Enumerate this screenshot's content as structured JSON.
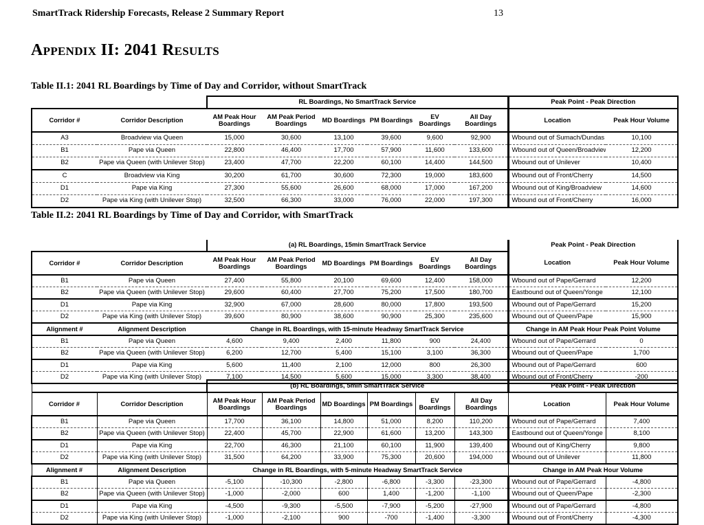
{
  "page": {
    "header_title": "SmartTrack Ridership Forecasts, Release 2 Summary Report",
    "page_number": "13",
    "appendix_title": "Appendix II: 2041 Results"
  },
  "shared": {
    "peak_point_header": "Peak Point - Peak Direction",
    "columns": [
      "Corridor #",
      "Corridor Description",
      "AM Peak Hour Boardings",
      "AM Peak Period Boardings",
      "MD Boardings",
      "PM Boardings",
      "EV Boardings",
      "All Day Boardings",
      "Location",
      "Peak Hour Volume"
    ]
  },
  "table1": {
    "caption": "Table II.1: 2041 RL Boardings by Time of Day and Corridor, without SmartTrack",
    "span_header": "RL Boardings, No SmartTrack Service",
    "rows": [
      [
        "A3",
        "Broadview via Queen",
        "15,000",
        "30,600",
        "13,100",
        "39,600",
        "9,600",
        "92,900",
        "Wbound out of Sumach/Dundas",
        "10,100"
      ],
      [
        "B1",
        "Pape via Queen",
        "22,800",
        "46,400",
        "17,700",
        "57,900",
        "11,600",
        "133,600",
        "Wbound out of Queen/Broadview",
        "12,200"
      ],
      [
        "B2",
        "Pape via Queen (with Unilever Stop)",
        "23,400",
        "47,700",
        "22,200",
        "60,100",
        "14,400",
        "144,500",
        "Wbound out of Unilever",
        "10,400"
      ],
      [
        "C",
        "Broadview via King",
        "30,200",
        "61,700",
        "30,600",
        "72,300",
        "19,000",
        "183,600",
        "Wbound out of Front/Cherry",
        "14,500"
      ],
      [
        "D1",
        "Pape via King",
        "27,300",
        "55,600",
        "26,600",
        "68,000",
        "17,000",
        "167,200",
        "Wbound out of King/Broadview",
        "14,600"
      ],
      [
        "D2",
        "Pape via King (with Unilever Stop)",
        "32,500",
        "66,300",
        "33,000",
        "76,000",
        "22,000",
        "197,300",
        "Wbound out of Front/Cherry",
        "16,000"
      ]
    ]
  },
  "table2": {
    "caption": "Table II.2: 2041 RL Boardings by Time of Day and Corridor, with SmartTrack"
  },
  "table2a": {
    "span_header": "(a) RL Boardings, 15min SmartTrack Service",
    "rows": [
      [
        "B1",
        "Pape via Queen",
        "27,400",
        "55,800",
        "20,100",
        "69,600",
        "12,400",
        "158,000",
        "Wbound out of Pape/Gerrard",
        "12,200"
      ],
      [
        "B2",
        "Pape via Queen (with Unilever Stop)",
        "29,600",
        "60,400",
        "27,700",
        "75,200",
        "17,500",
        "180,700",
        "Eastbound out of Queen/Yonge",
        "12,100"
      ],
      [
        "D1",
        "Pape via King",
        "32,900",
        "67,000",
        "28,600",
        "80,000",
        "17,800",
        "193,500",
        "Wbound out of Pape/Gerrard",
        "15,200"
      ],
      [
        "D2",
        "Pape via King (with Unilever Stop)",
        "39,600",
        "80,900",
        "38,600",
        "90,900",
        "25,300",
        "235,600",
        "Wbound out of Queen/Pape",
        "15,900"
      ]
    ],
    "change": {
      "id_header": "Alignment #",
      "desc_header": "Alignment Description",
      "span_header": "Change in RL Boardings, with 15-minute Headway SmartTrack Service",
      "volume_header": "Change in AM Peak Hour Peak Point Volume",
      "rows": [
        [
          "B1",
          "Pape via Queen",
          "4,600",
          "9,400",
          "2,400",
          "11,800",
          "900",
          "24,400",
          "Wbound out of Pape/Gerrard",
          "0"
        ],
        [
          "B2",
          "Pape via Queen (with Unilever Stop)",
          "6,200",
          "12,700",
          "5,400",
          "15,100",
          "3,100",
          "36,300",
          "Wbound out of Queen/Pape",
          "1,700"
        ],
        [
          "D1",
          "Pape via King",
          "5,600",
          "11,400",
          "2,100",
          "12,000",
          "800",
          "26,300",
          "Wbound out of Pape/Gerrard",
          "600"
        ],
        [
          "D2",
          "Pape via King (with Unilever Stop)",
          "7,100",
          "14,500",
          "5,600",
          "15,000",
          "3,300",
          "38,400",
          "Wbound out of Front/Cherry",
          "-200"
        ]
      ]
    }
  },
  "table2b": {
    "span_header": "(b) RL Boardings, 5min SmartTrack Service",
    "rows": [
      [
        "B1",
        "Pape via Queen",
        "17,700",
        "36,100",
        "14,800",
        "51,000",
        "8,200",
        "110,200",
        "Wbound out of Pape/Gerrard",
        "7,400"
      ],
      [
        "B2",
        "Pape via Queen (with Unilever Stop)",
        "22,400",
        "45,700",
        "22,900",
        "61,600",
        "13,200",
        "143,300",
        "Eastbound out of Queen/Yonge",
        "8,100"
      ],
      [
        "D1",
        "Pape via King",
        "22,700",
        "46,300",
        "21,100",
        "60,100",
        "11,900",
        "139,400",
        "Wbound out of King/Cherry",
        "9,800"
      ],
      [
        "D2",
        "Pape via King (with Unilever Stop)",
        "31,500",
        "64,200",
        "33,900",
        "75,300",
        "20,600",
        "194,000",
        "Wbound out of Unilever",
        "11,800"
      ]
    ],
    "change": {
      "id_header": "Alignment #",
      "desc_header": "Alignment Description",
      "span_header": "Change in RL Boardings, with 5-minute Headway SmartTrack Service",
      "volume_header": "Change in AM Peak Hour Volume",
      "rows": [
        [
          "B1",
          "Pape via Queen",
          "-5,100",
          "-10,300",
          "-2,800",
          "-6,800",
          "-3,300",
          "-23,300",
          "Wbound out of Pape/Gerrard",
          "-4,800"
        ],
        [
          "B2",
          "Pape via Queen (with Unilever Stop)",
          "-1,000",
          "-2,000",
          "600",
          "1,400",
          "-1,200",
          "-1,100",
          "Wbound out of Queen/Pape",
          "-2,300"
        ],
        [
          "D1",
          "Pape via King",
          "-4,500",
          "-9,300",
          "-5,500",
          "-7,900",
          "-5,200",
          "-27,900",
          "Wbound out of Pape/Gerrard",
          "-4,800"
        ],
        [
          "D2",
          "Pape via King (with Unilever Stop)",
          "-1,000",
          "-2,100",
          "900",
          "-700",
          "-1,400",
          "-3,300",
          "Wbound out of Front/Cherry",
          "-4,300"
        ]
      ]
    }
  }
}
